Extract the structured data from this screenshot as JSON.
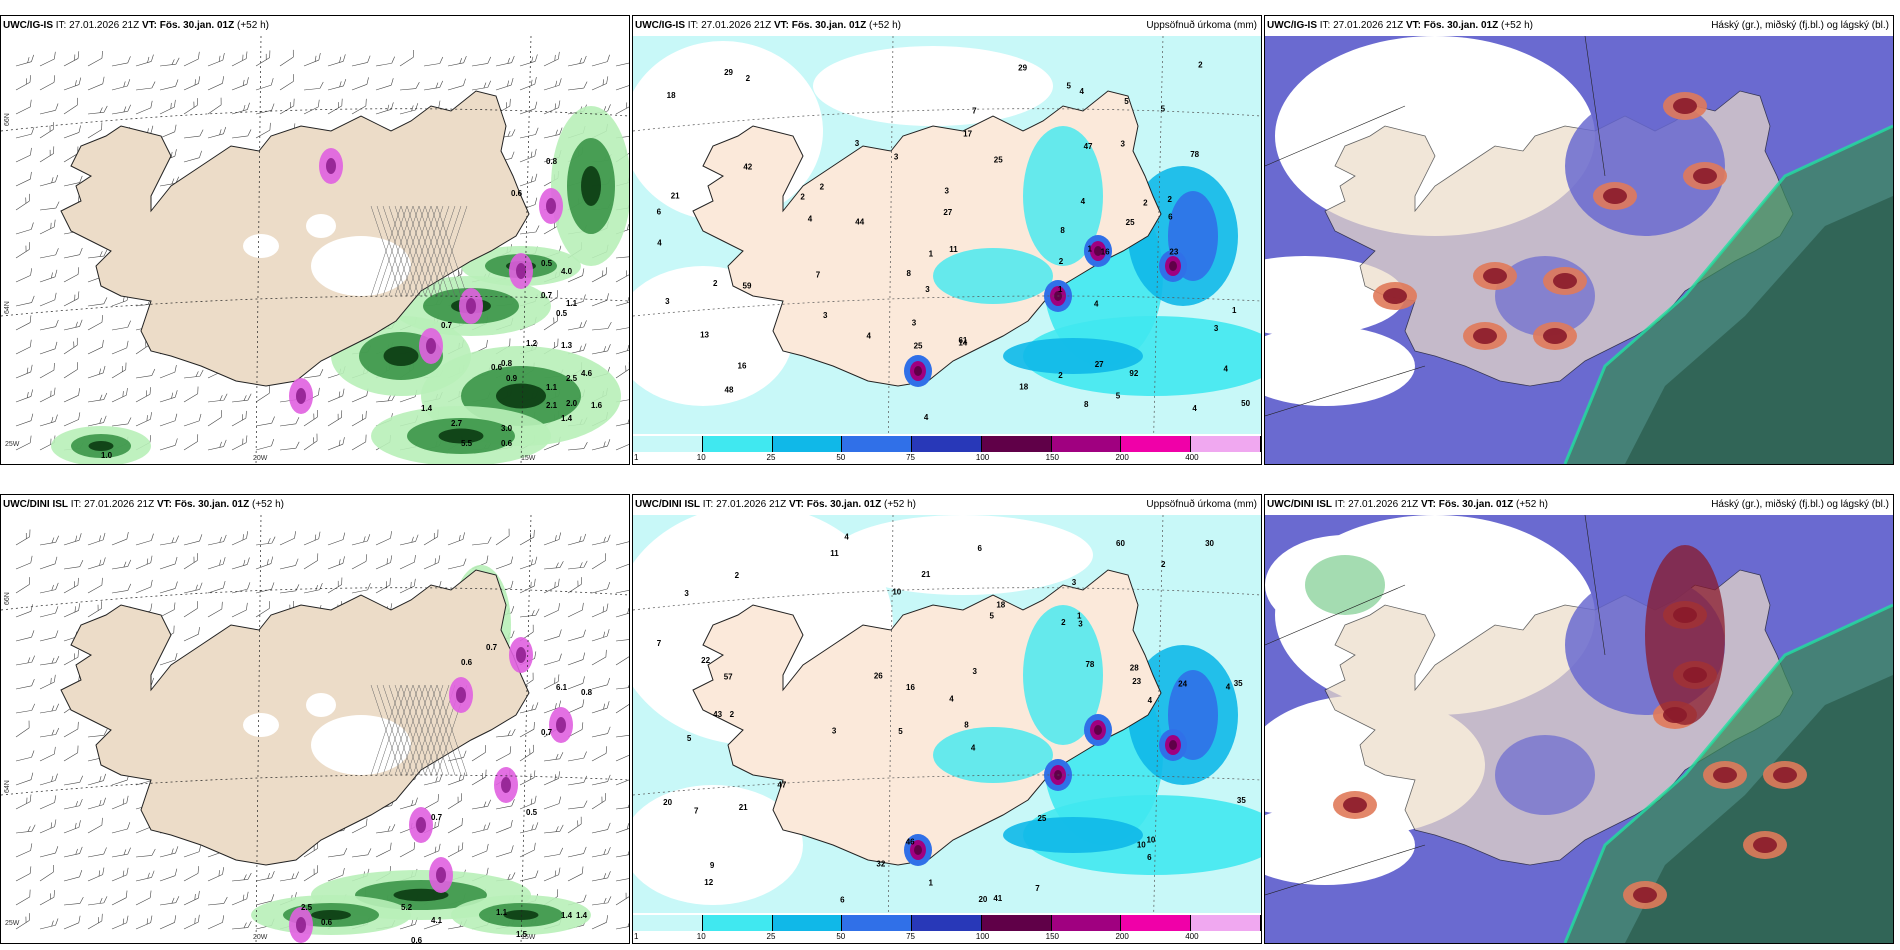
{
  "panels": [
    {
      "id": "p1",
      "model": "UWC/IG-IS",
      "issue": "IT: 27.01.2026 21Z",
      "vt_label": "VT:",
      "valid": "Fös. 30.jan. 01Z",
      "lead": "(+52 h)",
      "field": "",
      "type": "wind"
    },
    {
      "id": "p2",
      "model": "UWC/IG-IS",
      "issue": "IT: 27.01.2026 21Z",
      "vt_label": "VT:",
      "valid": "Fös. 30.jan. 01Z",
      "lead": "(+52 h)",
      "field": "Uppsöfnuð úrkoma (mm)",
      "type": "precip"
    },
    {
      "id": "p3",
      "model": "UWC/IG-IS",
      "issue": "IT: 27.01.2026 21Z",
      "vt_label": "VT:",
      "valid": "Fös. 30.jan. 01Z",
      "lead": "(+52 h)",
      "field": "Háský (gr.), miðský (fj.bl.) og lágský (bl.)",
      "type": "cloud"
    },
    {
      "id": "p4",
      "model": "UWC/DINI ISL",
      "issue": "IT: 27.01.2026 21Z",
      "vt_label": "VT:",
      "valid": "Fös. 30.jan. 01Z",
      "lead": "(+52 h)",
      "field": "",
      "type": "wind"
    },
    {
      "id": "p5",
      "model": "UWC/DINI ISL",
      "issue": "IT: 27.01.2026 21Z",
      "vt_label": "VT:",
      "valid": "Fös. 30.jan. 01Z",
      "lead": "(+52 h)",
      "field": "Uppsöfnuð úrkoma (mm)",
      "type": "precip"
    },
    {
      "id": "p6",
      "model": "UWC/DINI ISL",
      "issue": "IT: 27.01.2026 21Z",
      "vt_label": "VT:",
      "valid": "Fös. 30.jan. 01Z",
      "lead": "(+52 h)",
      "field": "Háský (gr.), miðský (fj.bl.) og lágský (bl.)",
      "type": "cloud"
    }
  ],
  "axis_labels": {
    "lat66": "66N",
    "lat64": "64N",
    "lon25": "25W",
    "lon20": "20W",
    "lon15": "15W"
  },
  "colorbar": {
    "ticks": [
      "1",
      "10",
      "25",
      "50",
      "75",
      "100",
      "150",
      "200",
      "400"
    ],
    "colors": [
      "#c8f8f8",
      "#40e8f0",
      "#10b8e8",
      "#3070e8",
      "#2838b8",
      "#600048",
      "#a00080",
      "#f000a8",
      "#f0a8f0"
    ]
  },
  "wind_values": {
    "p1": [
      "0.8",
      "0.6",
      "0.5",
      "4.0",
      "1.1",
      "0.7",
      "0.5",
      "0.7",
      "1.2",
      "1.3",
      "0.8",
      "0.6",
      "0.9",
      "1.1",
      "2.0",
      "1.4",
      "3.0",
      "5.5",
      "1.4",
      "1.6",
      "0.6",
      "1.0",
      "2.7",
      "4.6",
      "2.5",
      "2.1"
    ],
    "p4": [
      "0.7",
      "0.6",
      "0.7",
      "0.5",
      "2.5",
      "0.7",
      "0.6",
      "4.1",
      "5.2",
      "1.1",
      "1.4",
      "1.4",
      "1.5",
      "0.6",
      "6.1",
      "0.8"
    ]
  },
  "precip_values": {
    "p2": [
      "1",
      "1",
      "2",
      "3",
      "2",
      "3",
      "2",
      "3",
      "4",
      "5",
      "1",
      "2",
      "3",
      "4",
      "3",
      "4",
      "5",
      "2",
      "5",
      "3",
      "3",
      "4",
      "4",
      "5",
      "6",
      "16",
      "42",
      "47",
      "50",
      "59",
      "78",
      "29",
      "21",
      "27",
      "44",
      "48",
      "25",
      "11",
      "16",
      "8",
      "8",
      "7",
      "7",
      "4",
      "6",
      "3",
      "2",
      "2",
      "1",
      "2",
      "3",
      "2",
      "27",
      "92",
      "18",
      "4",
      "4",
      "29",
      "25",
      "61",
      "23",
      "25",
      "17",
      "18",
      "14",
      "13",
      "8",
      "4"
    ],
    "p5": [
      "4",
      "3",
      "4",
      "5",
      "4",
      "2",
      "3",
      "2",
      "5",
      "5",
      "4",
      "12",
      "11",
      "3",
      "20",
      "41",
      "46",
      "60",
      "78",
      "47",
      "57",
      "43",
      "35",
      "24",
      "20",
      "22",
      "16",
      "23",
      "10",
      "7",
      "10",
      "18",
      "21",
      "26",
      "25",
      "35",
      "28",
      "32",
      "30",
      "21",
      "9",
      "6",
      "7",
      "2",
      "1",
      "3",
      "6",
      "1",
      "7",
      "8",
      "10",
      "4",
      "3",
      "2",
      "6"
    ]
  }
}
